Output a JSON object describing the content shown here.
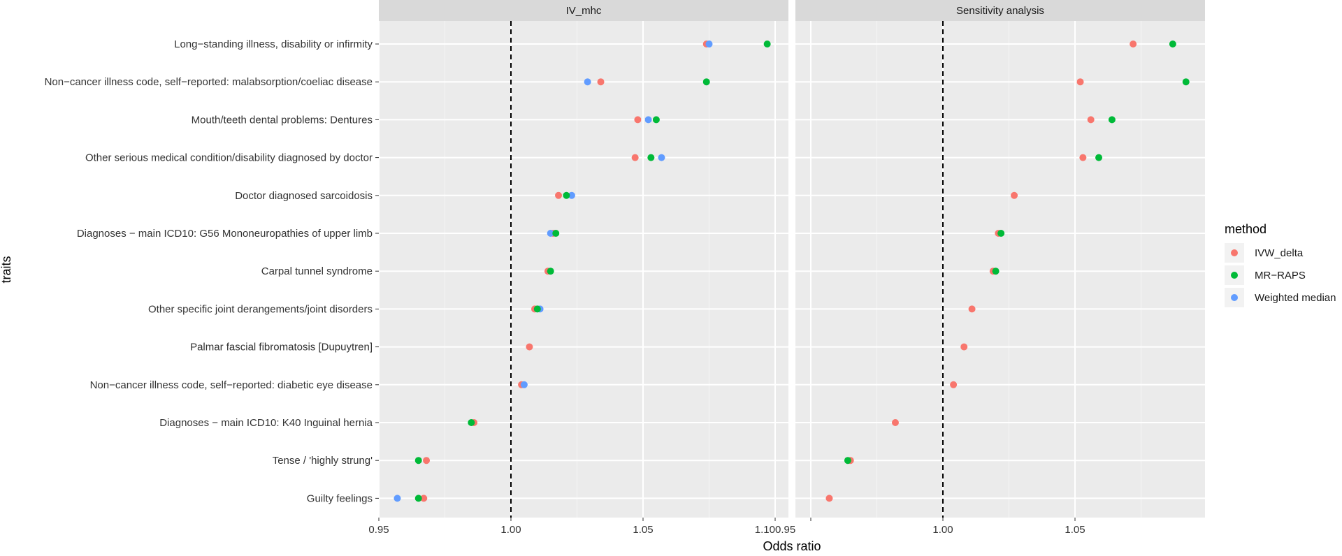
{
  "chart_data": {
    "type": "scatter",
    "xlabel": "Odds ratio",
    "ylabel": "traits",
    "xlim": [
      0.95,
      1.1
    ],
    "x_ticks": [
      0.95,
      1.0,
      1.05,
      1.1
    ],
    "x_tick_labels": [
      "0.95",
      "1.00",
      "1.05",
      "1.100.95"
    ],
    "panel2_tick_labels": [
      "",
      "1.00",
      "1.05"
    ],
    "reference_line": 1.0,
    "traits": [
      "Long−standing illness, disability or infirmity",
      "Non−cancer illness code, self−reported: malabsorption/coeliac disease",
      "Mouth/teeth dental problems: Dentures",
      "Other serious medical condition/disability diagnosed by doctor",
      "Doctor diagnosed sarcoidosis",
      "Diagnoses − main ICD10: G56 Mononeuropathies of upper limb",
      "Carpal tunnel syndrome",
      "Other specific joint derangements/joint disorders",
      "Palmar fascial fibromatosis [Dupuytren]",
      "Non−cancer illness code, self−reported: diabetic eye disease",
      "Diagnoses − main ICD10: K40 Inguinal hernia",
      "Tense / 'highly strung'",
      "Guilty feelings"
    ],
    "legend": {
      "title": "method",
      "position": "right",
      "entries": [
        {
          "name": "IVW_delta",
          "color": "#F8766D"
        },
        {
          "name": "MR−RAPS",
          "color": "#00BA38"
        },
        {
          "name": "Weighted median",
          "color": "#619CFF"
        }
      ]
    },
    "panels": [
      {
        "title": "IV_mhc",
        "series": [
          {
            "name": "IVW_delta",
            "color": "#F8766D",
            "values": [
              1.074,
              1.034,
              1.048,
              1.047,
              1.018,
              1.016,
              1.014,
              1.009,
              1.007,
              1.004,
              0.986,
              0.968,
              0.967
            ]
          },
          {
            "name": "Weighted median",
            "color": "#619CFF",
            "values": [
              1.075,
              1.029,
              1.052,
              1.057,
              1.023,
              1.015,
              null,
              1.011,
              null,
              1.005,
              null,
              null,
              0.957
            ]
          },
          {
            "name": "MR−RAPS",
            "color": "#00BA38",
            "values": [
              1.097,
              1.074,
              1.055,
              1.053,
              1.021,
              1.017,
              1.015,
              1.01,
              null,
              null,
              0.985,
              0.965,
              0.965
            ]
          }
        ]
      },
      {
        "title": "Sensitivity analysis",
        "series": [
          {
            "name": "IVW_delta",
            "color": "#F8766D",
            "values": [
              1.072,
              1.052,
              1.056,
              1.053,
              1.027,
              1.021,
              1.019,
              1.011,
              1.008,
              1.004,
              0.982,
              0.965,
              0.957
            ]
          },
          {
            "name": "MR−RAPS",
            "color": "#00BA38",
            "values": [
              1.087,
              1.092,
              1.064,
              1.059,
              null,
              1.022,
              1.02,
              null,
              null,
              null,
              null,
              0.964,
              null
            ]
          }
        ]
      }
    ]
  }
}
